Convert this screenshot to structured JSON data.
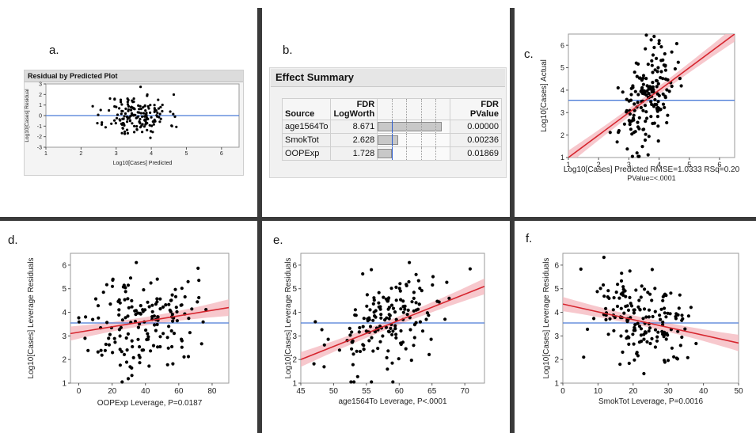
{
  "panels": {
    "a": "a.",
    "b": "b.",
    "c": "c.",
    "d": "d.",
    "e": "e.",
    "f": "f."
  },
  "effect_summary": {
    "title": "Effect Summary",
    "headers": {
      "source": "Source",
      "logworth_top": "FDR",
      "logworth_bottom": "LogWorth",
      "pvalue": "FDR PValue"
    },
    "rows": [
      {
        "source": "age1564To",
        "logworth": "8.671",
        "pvalue": "0.00000",
        "value": 8.671
      },
      {
        "source": "SmokTot",
        "logworth": "2.628",
        "pvalue": "0.00236",
        "value": 2.628
      },
      {
        "source": "OOPExp",
        "logworth": "1.728",
        "pvalue": "0.01869",
        "value": 1.728
      }
    ],
    "bar_max": 10,
    "threshold": 2
  },
  "chart_data": [
    {
      "id": "a",
      "type": "scatter",
      "title": "Residual by Predicted Plot",
      "xlabel": "Log10[Cases] Predicted",
      "ylabel": "Log10[Cases] Residual",
      "xlim": [
        1,
        6.5
      ],
      "ylim": [
        -3,
        3
      ],
      "xticks": [
        1,
        2,
        3,
        4,
        5,
        6
      ],
      "yticks": [
        -3,
        -2,
        -1,
        0,
        1,
        2,
        3
      ],
      "hline": 0,
      "n": 170,
      "cloud": {
        "xmean": 3.6,
        "xsd": 0.45,
        "ymean": 0,
        "ysd": 1.0,
        "slope": 0,
        "xmin": 2.2,
        "xmax": 5.0,
        "seed": 11
      }
    },
    {
      "id": "c",
      "type": "scatter",
      "title": "",
      "xlabel": "Log10[Cases] Predicted RMSE=1.0333 RSq=0.20",
      "xlabel2": "PValue=<.0001",
      "ylabel": "Log10[Cases] Actual",
      "xlim": [
        1,
        6.5
      ],
      "ylim": [
        1,
        6.5
      ],
      "xticks": [
        1,
        2,
        3,
        4,
        5,
        6
      ],
      "yticks": [
        1,
        2,
        3,
        4,
        5,
        6
      ],
      "hline": 3.55,
      "fit": {
        "x0": 1,
        "y0": 1,
        "x1": 6.5,
        "y1": 6.5
      },
      "n": 170,
      "cloud": {
        "xmean": 3.6,
        "xsd": 0.45,
        "ymean": 3.6,
        "ysd": 1.0,
        "slope": 1.0,
        "xmin": 2.2,
        "xmax": 5.0,
        "seed": 23
      }
    },
    {
      "id": "d",
      "type": "scatter",
      "title": "",
      "xlabel": "OOPExp Leverage, P=0.0187",
      "ylabel": "Log10[Cases] Leverage Residuals",
      "xlim": [
        -5,
        90
      ],
      "ylim": [
        1,
        6.5
      ],
      "xticks": [
        0,
        20,
        40,
        60,
        80
      ],
      "yticks": [
        1,
        2,
        3,
        4,
        5,
        6
      ],
      "hline": 3.55,
      "fit": {
        "x0": -5,
        "y0": 3.1,
        "x1": 90,
        "y1": 4.2
      },
      "n": 170,
      "cloud": {
        "xmean": 38,
        "xsd": 16,
        "ymean": 3.6,
        "ysd": 1.05,
        "slope": 0.012,
        "xmin": 0,
        "xmax": 82,
        "seed": 37
      }
    },
    {
      "id": "e",
      "type": "scatter",
      "title": "",
      "xlabel": "age1564To Leverage, P<.0001",
      "ylabel": "Log10[Cases] Leverage Residuals",
      "xlim": [
        45,
        73
      ],
      "ylim": [
        1,
        6.5
      ],
      "xticks": [
        45,
        50,
        55,
        60,
        65,
        70
      ],
      "yticks": [
        1,
        2,
        3,
        4,
        5,
        6
      ],
      "hline": 3.55,
      "fit": {
        "x0": 45,
        "y0": 2.0,
        "x1": 73,
        "y1": 5.1
      },
      "n": 170,
      "cloud": {
        "xmean": 58.5,
        "xsd": 4.5,
        "ymean": 3.6,
        "ysd": 1.0,
        "slope": 0.11,
        "xmin": 47,
        "xmax": 72,
        "seed": 53
      }
    },
    {
      "id": "f",
      "type": "scatter",
      "title": "",
      "xlabel": "SmokTot Leverage, P=0.0016",
      "ylabel": "Log10[Cases] Leverage Residuals",
      "xlim": [
        0,
        50
      ],
      "ylim": [
        1,
        6.5
      ],
      "xticks": [
        0,
        10,
        20,
        30,
        40,
        50
      ],
      "yticks": [
        1,
        2,
        3,
        4,
        5,
        6
      ],
      "hline": 3.55,
      "fit": {
        "x0": 0,
        "y0": 4.35,
        "x1": 50,
        "y1": 2.7
      },
      "n": 170,
      "cloud": {
        "xmean": 23,
        "xsd": 8,
        "ymean": 3.6,
        "ysd": 1.0,
        "slope": -0.033,
        "xmin": 5,
        "xmax": 48,
        "seed": 71
      }
    }
  ]
}
